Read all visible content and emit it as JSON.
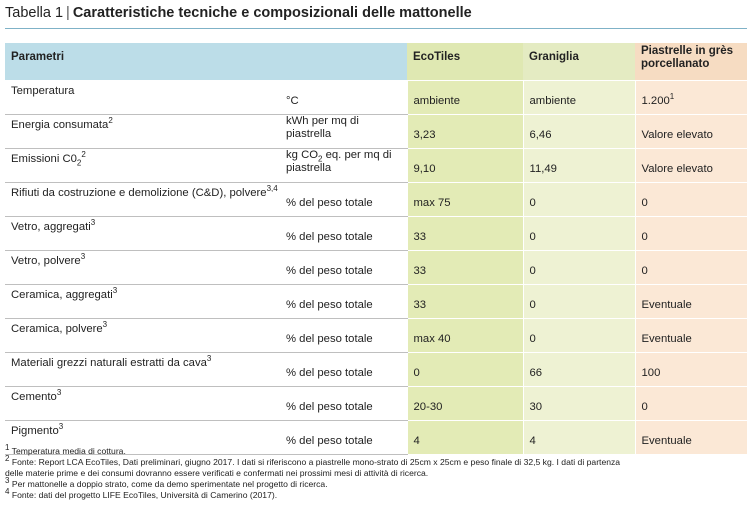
{
  "title": {
    "label": "Tabella 1",
    "text": "Caratteristiche tecniche e composizionali delle mattonelle"
  },
  "headers": {
    "param": "Parametri",
    "ecotiles": "EcoTiles",
    "graniglia": "Graniglia",
    "gres": "Piastrelle in grès porcellanato"
  },
  "rows": [
    {
      "name": "Temperatura",
      "name_sup": "",
      "unit": "°C",
      "unit_sub": "",
      "unit_rest": "",
      "ecotiles": "ambiente",
      "graniglia": "ambiente",
      "gres": "1.200",
      "gres_sup": "1"
    },
    {
      "name": "Energia consumata",
      "name_sup": "2",
      "unit": "kWh per mq di piastrella",
      "unit_sub": "",
      "unit_rest": "",
      "ecotiles": "3,23",
      "graniglia": "6,46",
      "gres": "Valore elevato",
      "gres_sup": ""
    },
    {
      "name": "Emissioni C0",
      "name_sub": "2",
      "name_sup": "2",
      "unit": "kg CO",
      "unit_sub": "2",
      "unit_rest": " eq. per mq di piastrella",
      "ecotiles": "9,10",
      "graniglia": "11,49",
      "gres": "Valore elevato",
      "gres_sup": ""
    },
    {
      "name": "Rifiuti da costruzione e demolizione (C&D), polvere",
      "name_sup": "3,4",
      "unit": "% del peso totale",
      "ecotiles": "max 75",
      "graniglia": "0",
      "gres": "0",
      "gres_sup": ""
    },
    {
      "name": "Vetro, aggregati",
      "name_sup": "3",
      "unit": "% del peso totale",
      "ecotiles": "33",
      "graniglia": "0",
      "gres": "0",
      "gres_sup": ""
    },
    {
      "name": "Vetro, polvere",
      "name_sup": "3",
      "unit": "% del peso totale",
      "ecotiles": "33",
      "graniglia": "0",
      "gres": "0",
      "gres_sup": ""
    },
    {
      "name": "Ceramica, aggregati",
      "name_sup": "3",
      "unit": "% del peso totale",
      "ecotiles": "33",
      "graniglia": "0",
      "gres": "Eventuale",
      "gres_sup": ""
    },
    {
      "name": "Ceramica, polvere",
      "name_sup": "3",
      "unit": "% del peso totale",
      "ecotiles": "max 40",
      "graniglia": "0",
      "gres": "Eventuale",
      "gres_sup": ""
    },
    {
      "name": "Materiali grezzi naturali estratti da cava",
      "name_sup": "3",
      "unit": "% del peso totale",
      "ecotiles": "0",
      "graniglia": "66",
      "gres": "100",
      "gres_sup": ""
    },
    {
      "name": "Cemento",
      "name_sup": "3",
      "unit": "% del peso totale",
      "ecotiles": "20-30",
      "graniglia": "30",
      "gres": "0",
      "gres_sup": ""
    },
    {
      "name": "Pigmento",
      "name_sup": "3",
      "unit": "% del peso totale",
      "ecotiles": "4",
      "graniglia": "4",
      "gres": "Eventuale",
      "gres_sup": ""
    }
  ],
  "notes": [
    {
      "sup": "1",
      "text": " Temperatura media di cottura."
    },
    {
      "sup": "2",
      "text": " Fonte: Report LCA EcoTiles, Dati preliminari, giugno 2017. I dati si riferiscono a piastrelle mono-strato di 25cm x 25cm e peso finale di 32,5 kg. I dati di partenza"
    },
    {
      "sup": "",
      "text": "delle materie prime e dei consumi dovranno essere verificati e confermati nei prossimi mesi di attività di ricerca."
    },
    {
      "sup": "3",
      "text": " Per mattonelle a doppio strato, come da demo sperimentate nel progetto di ricerca."
    },
    {
      "sup": "4",
      "text": " Fonte: dati del progetto LIFE EcoTiles, Università di Camerino (2017)."
    }
  ],
  "colors": {
    "header_blue": "#bcdde8",
    "ecotiles_green": "#e3ebb6",
    "graniglia_green": "#eef2d3",
    "gres_peach": "#fbe8d6",
    "rule": "#7fb2c7"
  }
}
